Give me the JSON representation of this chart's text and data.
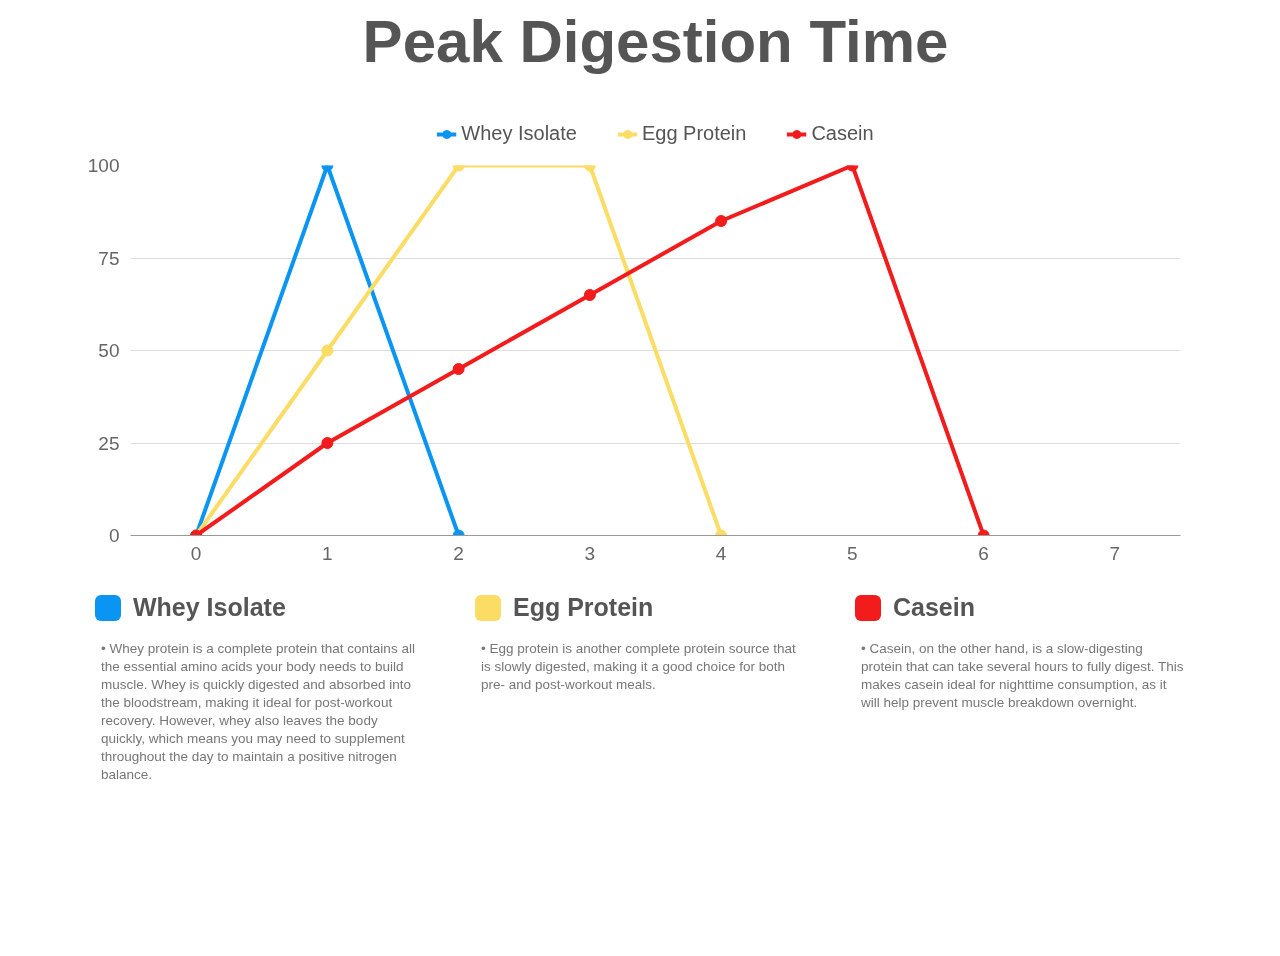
{
  "chart_data": {
    "type": "line",
    "title": "Peak Digestion Time",
    "xlim": [
      -0.5,
      7.5
    ],
    "xticks": [
      0,
      1,
      2,
      3,
      4,
      5,
      6,
      7
    ],
    "ylim": [
      0,
      100
    ],
    "yticks": [
      0,
      25,
      50,
      75,
      100
    ],
    "grid": "y",
    "legend": "top",
    "marker": "circle",
    "line_style": "solid",
    "series": [
      {
        "name": "Whey Isolate",
        "color": "#0a95f2",
        "x": [
          0,
          1,
          2
        ],
        "values": [
          0,
          100,
          0
        ]
      },
      {
        "name": "Egg Protein",
        "color": "#fbdc64",
        "x": [
          0,
          1,
          2,
          3,
          4
        ],
        "values": [
          0,
          50,
          100,
          100,
          0
        ]
      },
      {
        "name": "Casein",
        "color": "#f21c1c",
        "x": [
          0,
          1,
          2,
          3,
          4,
          5,
          6
        ],
        "values": [
          0,
          25,
          45,
          65,
          85,
          100,
          0
        ]
      }
    ],
    "annotations": [
      "Whey Isolate",
      "• Whey protein is a complete protein that contains all the essential amino acids your body needs to build muscle. Whey is quickly digested and absorbed into the bloodstream, making it ideal for post-workout recovery. However, whey also leaves the body quickly, which means you may need to supplement throughout the day to maintain a positive nitrogen balance.",
      "Egg Protein",
      "• Egg protein is another complete protein source that is slowly digested, making it a good choice for both pre- and post-workout meals.",
      "Casein",
      "• Casein, on the other hand, is a slow-digesting protein that can take several hours to fully digest. This makes casein ideal for nighttime consumption, as it will help prevent muscle breakdown overnight."
    ]
  }
}
